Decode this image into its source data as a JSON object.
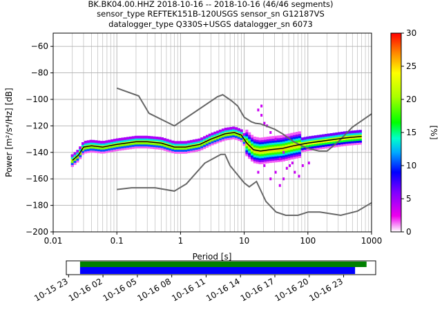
{
  "title": {
    "line1": "BK.BK04.00.HHZ   2018-10-16 -- 2018-10-16  (46/46 segments)",
    "line2": "sensor_type REFTEK151B-120USGS sensor_sn G12187VS",
    "line3": "datalogger_type Q330S+USGS datalogger_sn 6073"
  },
  "chart_data": [
    {
      "type": "heatmap",
      "xlabel": "Period [s]",
      "ylabel": "Power [m²/s⁴/Hz] [dB]",
      "x_scale": "log",
      "xlim": [
        0.01,
        1000
      ],
      "ylim": [
        -200,
        -50
      ],
      "x_ticks": [
        {
          "v": 0.01,
          "label": "0.01"
        },
        {
          "v": 0.1,
          "label": "0.1"
        },
        {
          "v": 1,
          "label": "1"
        },
        {
          "v": 10,
          "label": "10"
        },
        {
          "v": 100,
          "label": "100"
        },
        {
          "v": 1000,
          "label": "1000"
        }
      ],
      "y_ticks": [
        -60,
        -80,
        -100,
        -120,
        -140,
        -160,
        -180,
        -200
      ],
      "grid": true,
      "colorbar": {
        "label": "[%]",
        "min": 0,
        "max": 30,
        "ticks": [
          0,
          5,
          10,
          15,
          20,
          25,
          30
        ]
      },
      "series": [
        {
          "kind": "reference",
          "color": "#666666",
          "x": [
            0.1,
            0.22,
            0.32,
            0.8,
            3.8,
            4.6,
            6.3,
            7.9,
            10,
            13,
            15,
            18,
            30,
            40,
            60,
            80,
            100,
            150,
            200,
            300,
            500,
            1000
          ],
          "y": [
            -91.5,
            -97.4,
            -110.5,
            -120,
            -98,
            -96.5,
            -101,
            -105,
            -113.5,
            -117,
            -118,
            -118.5,
            -122.5,
            -126,
            -132,
            -135,
            -137,
            -139,
            -139,
            -132,
            -121,
            -111
          ]
        },
        {
          "kind": "reference",
          "color": "#666666",
          "x": [
            0.1,
            0.17,
            0.4,
            0.8,
            1.24,
            2.4,
            4.3,
            5,
            6,
            10,
            12,
            15.6,
            21.9,
            31.6,
            45,
            70,
            101,
            154,
            328,
            600,
            1000
          ],
          "y": [
            -168,
            -166.7,
            -166.7,
            -169.2,
            -163.7,
            -148.1,
            -141.5,
            -141.5,
            -150,
            -163,
            -166,
            -162,
            -177,
            -185,
            -187.5,
            -187.5,
            -185,
            -185,
            -187.5,
            -184.4,
            -178
          ]
        },
        {
          "kind": "mode",
          "color": "#000000",
          "x": [
            0.02,
            0.025,
            0.03,
            0.04,
            0.06,
            0.1,
            0.2,
            0.3,
            0.5,
            0.8,
            1.2,
            2,
            3,
            5,
            7,
            9,
            11,
            14,
            18,
            25,
            40,
            60,
            100,
            200,
            400,
            700
          ],
          "y": [
            -146,
            -142,
            -136,
            -135,
            -136,
            -134,
            -132,
            -132,
            -133,
            -136,
            -136,
            -134,
            -130,
            -126,
            -125,
            -127,
            -133,
            -138,
            -139,
            -138,
            -137,
            -135,
            -133,
            -131,
            -129,
            -128
          ]
        }
      ]
    },
    {
      "type": "timeline",
      "x_tick_labels": [
        "10-15 23",
        "10-16 02",
        "10-16 05",
        "10-16 08",
        "10-16 11",
        "10-16 14",
        "10-16 17",
        "10-16 20",
        "10-16 23"
      ],
      "x_ticks_hours": [
        -1,
        2,
        5,
        8,
        11,
        14,
        17,
        20,
        23
      ],
      "xlim_hours": [
        -1.2,
        25.8
      ],
      "bars": [
        {
          "color": "#008000",
          "start_hours": 0,
          "end_hours": 25.0
        },
        {
          "color": "#0000ff",
          "start_hours": 0,
          "end_hours": 24.0
        }
      ]
    }
  ]
}
